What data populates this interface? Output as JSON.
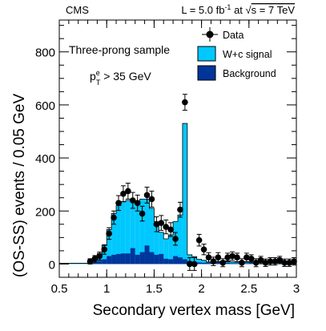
{
  "chart_data": {
    "type": "bar",
    "header_left": "CMS",
    "header_right": {
      "lumi_prefix": "L = 5.0 fb",
      "lumi_exp": "-1",
      "lumi_mid": " at ",
      "sqrt_sym": "√",
      "energy": "s = 7 TeV"
    },
    "annotation": "Three-prong sample",
    "cut": {
      "p": "p",
      "sup": "e",
      "sub": "T",
      "rest": " > 35 GeV"
    },
    "xlabel": "Secondary vertex mass [GeV]",
    "ylabel": "(OS-SS) events / 0.05 GeV",
    "xlim": [
      0.5,
      3.0
    ],
    "ylim": [
      -50,
      920
    ],
    "xticks": [
      0.5,
      1,
      1.5,
      2,
      2.5,
      3
    ],
    "xtick_labels": [
      "0.5",
      "1",
      "1.5",
      "2",
      "2.5",
      "3"
    ],
    "yticks": [
      0,
      200,
      400,
      600,
      800
    ],
    "ytick_labels": [
      "0",
      "200",
      "400",
      "600",
      "800"
    ],
    "legend": {
      "position": "top-right",
      "data": "Data",
      "signal": "W+c signal",
      "background": "Background"
    },
    "colors": {
      "signal": "#00c8ff",
      "background": "#00359a",
      "data": "#000000"
    },
    "bin_width": 0.05,
    "bin_lo": [
      0.5,
      0.55,
      0.6,
      0.65,
      0.7,
      0.75,
      0.8,
      0.85,
      0.9,
      0.95,
      1.0,
      1.05,
      1.1,
      1.15,
      1.2,
      1.25,
      1.3,
      1.35,
      1.4,
      1.45,
      1.5,
      1.55,
      1.6,
      1.65,
      1.7,
      1.75,
      1.8,
      1.85,
      1.9,
      1.95,
      2.0,
      2.05,
      2.1,
      2.15,
      2.2,
      2.25,
      2.3,
      2.35,
      2.4,
      2.45,
      2.5,
      2.55,
      2.6,
      2.65,
      2.7,
      2.75,
      2.8,
      2.85,
      2.9,
      2.95
    ],
    "signal_total": [
      3,
      3,
      3,
      3,
      3,
      3,
      10,
      25,
      40,
      70,
      130,
      190,
      220,
      235,
      240,
      245,
      230,
      245,
      245,
      210,
      160,
      120,
      95,
      110,
      160,
      185,
      530,
      35,
      28,
      18,
      14,
      8,
      6,
      10,
      8,
      12,
      8,
      7,
      6,
      7,
      9,
      7,
      6,
      5,
      7,
      6,
      5,
      4,
      8,
      6
    ],
    "background": [
      0,
      0,
      0,
      0,
      0,
      0,
      2,
      8,
      12,
      18,
      30,
      35,
      38,
      40,
      40,
      60,
      35,
      45,
      70,
      45,
      35,
      38,
      20,
      18,
      30,
      25,
      18,
      12,
      8,
      6,
      5,
      4,
      3,
      5,
      3,
      5,
      3,
      3,
      2,
      3,
      3,
      3,
      2,
      2,
      3,
      2,
      2,
      2,
      3,
      2
    ],
    "data_x": [
      0.825,
      0.875,
      0.925,
      0.975,
      1.025,
      1.075,
      1.125,
      1.175,
      1.225,
      1.275,
      1.325,
      1.375,
      1.425,
      1.475,
      1.525,
      1.575,
      1.625,
      1.675,
      1.725,
      1.775,
      1.825,
      1.875,
      1.925,
      1.975,
      2.025,
      2.075,
      2.125,
      2.175,
      2.225,
      2.275,
      2.325,
      2.375,
      2.425,
      2.475,
      2.525,
      2.575,
      2.625,
      2.675,
      2.725,
      2.775,
      2.825,
      2.875,
      2.925,
      2.975
    ],
    "data_y": [
      10,
      20,
      30,
      55,
      115,
      175,
      230,
      265,
      275,
      240,
      230,
      190,
      260,
      245,
      150,
      155,
      140,
      130,
      95,
      205,
      610,
      0,
      0,
      90,
      55,
      25,
      10,
      25,
      5,
      25,
      30,
      25,
      5,
      25,
      20,
      5,
      15,
      5,
      10,
      10,
      15,
      5,
      5,
      10
    ],
    "data_err": [
      10,
      12,
      15,
      18,
      22,
      25,
      28,
      30,
      30,
      30,
      30,
      28,
      30,
      30,
      28,
      28,
      26,
      26,
      24,
      28,
      30,
      24,
      24,
      22,
      20,
      18,
      16,
      18,
      15,
      16,
      16,
      16,
      15,
      16,
      15,
      15,
      14,
      14,
      14,
      14,
      14,
      14,
      14,
      14
    ]
  }
}
